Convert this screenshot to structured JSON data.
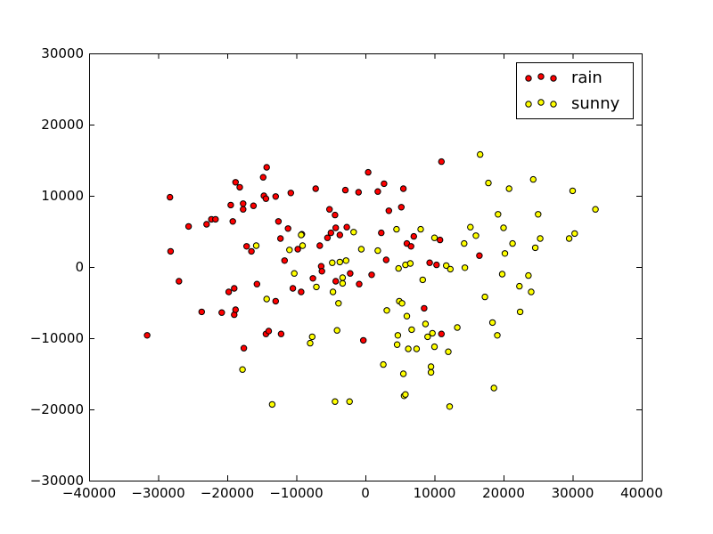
{
  "chart_data": {
    "type": "scatter",
    "title": "",
    "xlabel": "",
    "ylabel": "",
    "xlim": [
      -40000,
      40000
    ],
    "ylim": [
      -30000,
      30000
    ],
    "xticks": [
      -40000,
      -30000,
      -20000,
      -10000,
      0,
      10000,
      20000,
      30000,
      40000
    ],
    "yticks": [
      -30000,
      -20000,
      -10000,
      0,
      10000,
      20000,
      30000
    ],
    "xtick_labels": [
      "−40000",
      "−30000",
      "−20000",
      "−10000",
      "0",
      "10000",
      "20000",
      "30000",
      "40000"
    ],
    "ytick_labels": [
      "−30000",
      "−20000",
      "−10000",
      "0",
      "10000",
      "20000",
      "30000"
    ],
    "grid": false,
    "legend_position": "top-right",
    "series": [
      {
        "name": "rain",
        "color": "#ff0000",
        "points": [
          [
            -31600,
            -9600
          ],
          [
            -28300,
            9800
          ],
          [
            -28200,
            2200
          ],
          [
            -27000,
            -2000
          ],
          [
            -25600,
            5700
          ],
          [
            -23700,
            -6300
          ],
          [
            -23000,
            6000
          ],
          [
            -22300,
            6700
          ],
          [
            -21700,
            6700
          ],
          [
            -20800,
            -6400
          ],
          [
            -19800,
            -3500
          ],
          [
            -19500,
            8700
          ],
          [
            -19200,
            6400
          ],
          [
            -19000,
            -3000
          ],
          [
            -19000,
            -6700
          ],
          [
            -18800,
            11900
          ],
          [
            -18800,
            -6000
          ],
          [
            -18200,
            11200
          ],
          [
            -17700,
            8900
          ],
          [
            -17700,
            8100
          ],
          [
            -17600,
            -11400
          ],
          [
            -17200,
            2900
          ],
          [
            -16500,
            2200
          ],
          [
            -16200,
            8600
          ],
          [
            -15700,
            -2400
          ],
          [
            -14800,
            12600
          ],
          [
            -14700,
            10000
          ],
          [
            -14400,
            9600
          ],
          [
            -14400,
            -9400
          ],
          [
            -14300,
            14000
          ],
          [
            -14000,
            -9000
          ],
          [
            -13000,
            9900
          ],
          [
            -13000,
            -4800
          ],
          [
            -12600,
            6400
          ],
          [
            -12300,
            4000
          ],
          [
            -12200,
            -9400
          ],
          [
            -11700,
            900
          ],
          [
            -11200,
            5400
          ],
          [
            -10800,
            10400
          ],
          [
            -10500,
            -3000
          ],
          [
            -9800,
            2500
          ],
          [
            -9300,
            -3500
          ],
          [
            -9200,
            4600
          ],
          [
            -7600,
            -1600
          ],
          [
            -7200,
            11000
          ],
          [
            -6600,
            3000
          ],
          [
            -6400,
            100
          ],
          [
            -6300,
            -600
          ],
          [
            -5500,
            4100
          ],
          [
            -5200,
            8100
          ],
          [
            -5000,
            4800
          ],
          [
            -4400,
            7300
          ],
          [
            -4300,
            5500
          ],
          [
            -4300,
            -2000
          ],
          [
            -3700,
            4500
          ],
          [
            -2900,
            10800
          ],
          [
            -2700,
            5600
          ],
          [
            -2200,
            -900
          ],
          [
            -1000,
            10500
          ],
          [
            -900,
            -2400
          ],
          [
            -300,
            -10300
          ],
          [
            400,
            13300
          ],
          [
            900,
            -1100
          ],
          [
            1800,
            10600
          ],
          [
            2300,
            4800
          ],
          [
            2700,
            11700
          ],
          [
            3000,
            1000
          ],
          [
            3400,
            7900
          ],
          [
            5200,
            8400
          ],
          [
            5500,
            11000
          ],
          [
            6000,
            3300
          ],
          [
            6600,
            2900
          ],
          [
            7000,
            4300
          ],
          [
            8500,
            -5800
          ],
          [
            9300,
            600
          ],
          [
            10300,
            300
          ],
          [
            10800,
            3800
          ],
          [
            11000,
            14800
          ],
          [
            11000,
            -9400
          ],
          [
            16500,
            1600
          ]
        ]
      },
      {
        "name": "sunny",
        "color": "#ffff00",
        "points": [
          [
            -17800,
            -14400
          ],
          [
            -15800,
            3000
          ],
          [
            -14300,
            -4500
          ],
          [
            -13500,
            -19300
          ],
          [
            -11000,
            2400
          ],
          [
            -10300,
            -900
          ],
          [
            -9300,
            4500
          ],
          [
            -9100,
            3000
          ],
          [
            -8000,
            -10700
          ],
          [
            -7700,
            -9800
          ],
          [
            -7100,
            -2800
          ],
          [
            -4800,
            600
          ],
          [
            -4700,
            -3500
          ],
          [
            -4400,
            -18900
          ],
          [
            -4100,
            -8900
          ],
          [
            -3900,
            -5100
          ],
          [
            -3700,
            700
          ],
          [
            -3300,
            -1500
          ],
          [
            -3300,
            -2300
          ],
          [
            -2800,
            900
          ],
          [
            -2300,
            -18900
          ],
          [
            -1700,
            4900
          ],
          [
            -600,
            2500
          ],
          [
            1800,
            2300
          ],
          [
            2600,
            -13700
          ],
          [
            3100,
            -6100
          ],
          [
            4500,
            5300
          ],
          [
            4600,
            -10900
          ],
          [
            4700,
            -9600
          ],
          [
            4800,
            -200
          ],
          [
            4900,
            -4800
          ],
          [
            5300,
            -5100
          ],
          [
            5500,
            -15000
          ],
          [
            5600,
            -18100
          ],
          [
            5800,
            -17900
          ],
          [
            5800,
            300
          ],
          [
            6000,
            -6900
          ],
          [
            6200,
            -11500
          ],
          [
            6500,
            500
          ],
          [
            6700,
            -8800
          ],
          [
            7400,
            -11500
          ],
          [
            8000,
            5300
          ],
          [
            8300,
            -1800
          ],
          [
            8700,
            -8000
          ],
          [
            9000,
            -9800
          ],
          [
            9500,
            -14000
          ],
          [
            9500,
            -14800
          ],
          [
            9700,
            -9300
          ],
          [
            10000,
            4100
          ],
          [
            10000,
            -11200
          ],
          [
            11700,
            200
          ],
          [
            12000,
            -11900
          ],
          [
            12200,
            -19600
          ],
          [
            12300,
            -300
          ],
          [
            13300,
            -8500
          ],
          [
            14300,
            3300
          ],
          [
            14400,
            -100
          ],
          [
            15200,
            5600
          ],
          [
            16000,
            4400
          ],
          [
            16600,
            15800
          ],
          [
            17300,
            -4200
          ],
          [
            17800,
            11800
          ],
          [
            18400,
            -7800
          ],
          [
            18600,
            -17000
          ],
          [
            19100,
            -9600
          ],
          [
            19200,
            7400
          ],
          [
            19800,
            -1000
          ],
          [
            20000,
            5500
          ],
          [
            20200,
            1900
          ],
          [
            20800,
            11000
          ],
          [
            21300,
            3300
          ],
          [
            22300,
            -2700
          ],
          [
            22400,
            -6300
          ],
          [
            23600,
            -1200
          ],
          [
            24000,
            -3500
          ],
          [
            24300,
            12300
          ],
          [
            24600,
            2700
          ],
          [
            25000,
            7400
          ],
          [
            25300,
            4000
          ],
          [
            29500,
            4000
          ],
          [
            30000,
            10700
          ],
          [
            30300,
            4700
          ],
          [
            33300,
            8100
          ]
        ]
      }
    ]
  }
}
